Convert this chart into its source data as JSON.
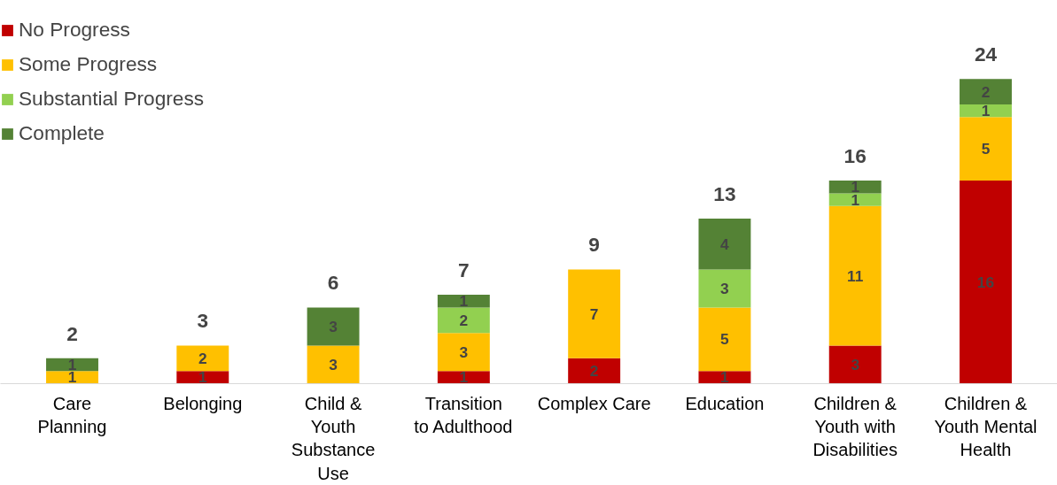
{
  "chart_data": {
    "type": "bar",
    "stacked": true,
    "data_labels": true,
    "legend": "top left",
    "grid": false,
    "categories": [
      "Care Planning",
      "Belonging",
      "Child & Youth Substance Use",
      "Transition to Adulthood",
      "Complex Care",
      "Education",
      "Children & Youth with Disabilities",
      "Children & Youth Mental Health"
    ],
    "series": [
      {
        "name": "No Progress",
        "color": "#c00000",
        "values": [
          null,
          1,
          null,
          1,
          2,
          1,
          3,
          16
        ]
      },
      {
        "name": "Some Progress",
        "color": "#ffc000",
        "values": [
          1,
          2,
          3,
          3,
          7,
          5,
          11,
          5
        ]
      },
      {
        "name": "Substantial Progress",
        "color": "#92d050",
        "values": [
          null,
          null,
          null,
          2,
          null,
          3,
          1,
          1
        ]
      },
      {
        "name": "Complete",
        "color": "#548235",
        "values": [
          1,
          null,
          3,
          1,
          null,
          4,
          1,
          2
        ]
      }
    ],
    "totals": [
      "2",
      "3",
      "6",
      "7",
      "9",
      "13",
      "16",
      "24"
    ]
  }
}
